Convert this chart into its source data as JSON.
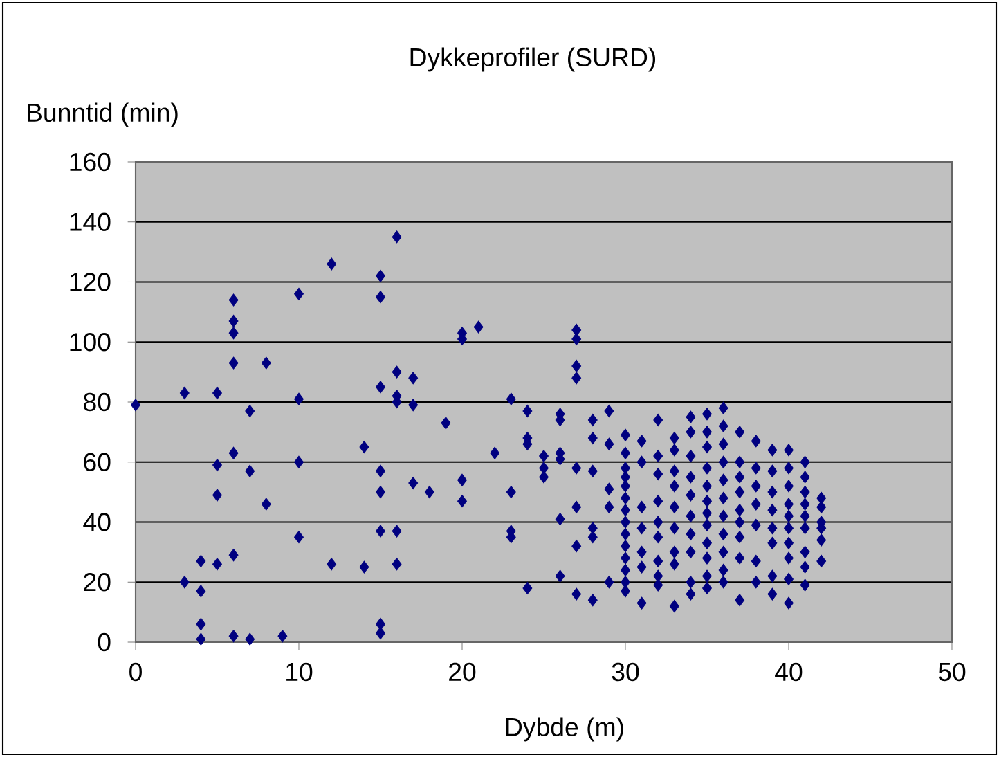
{
  "chart_data": {
    "type": "scatter",
    "title": "Dykkeprofiler (SURD)",
    "xlabel": "Dybde (m)",
    "ylabel": "Bunntid (min)",
    "xlim": [
      0,
      50
    ],
    "ylim": [
      0,
      160
    ],
    "xticks": [
      0,
      10,
      20,
      30,
      40,
      50
    ],
    "yticks": [
      0,
      20,
      40,
      60,
      80,
      100,
      120,
      140,
      160
    ],
    "grid": "y",
    "marker": "diamond",
    "color": "#000080",
    "x": [
      0,
      3,
      3,
      4,
      4,
      4,
      4,
      5,
      5,
      5,
      5,
      6,
      6,
      6,
      6,
      6,
      6,
      6,
      7,
      7,
      7,
      8,
      8,
      9,
      10,
      10,
      10,
      10,
      12,
      12,
      14,
      14,
      15,
      15,
      15,
      15,
      15,
      15,
      15,
      15,
      16,
      16,
      16,
      16,
      16,
      16,
      17,
      17,
      17,
      18,
      19,
      20,
      20,
      20,
      20,
      21,
      22,
      23,
      23,
      23,
      23,
      24,
      24,
      24,
      24,
      25,
      25,
      25,
      26,
      26,
      26,
      26,
      26,
      26,
      27,
      27,
      27,
      27,
      27,
      27,
      27,
      27,
      28,
      28,
      28,
      28,
      28,
      28,
      29,
      29,
      29,
      29,
      29,
      30,
      30,
      30,
      30,
      30,
      30,
      30,
      30,
      30,
      30,
      30,
      30,
      30,
      30,
      31,
      31,
      31,
      31,
      31,
      31,
      31,
      32,
      32,
      32,
      32,
      32,
      32,
      32,
      32,
      32,
      33,
      33,
      33,
      33,
      33,
      33,
      33,
      33,
      33,
      34,
      34,
      34,
      34,
      34,
      34,
      34,
      34,
      34,
      34,
      35,
      35,
      35,
      35,
      35,
      35,
      35,
      35,
      35,
      35,
      35,
      35,
      36,
      36,
      36,
      36,
      36,
      36,
      36,
      36,
      36,
      36,
      36,
      37,
      37,
      37,
      37,
      37,
      37,
      37,
      37,
      37,
      38,
      38,
      38,
      38,
      38,
      38,
      38,
      39,
      39,
      39,
      39,
      39,
      39,
      39,
      39,
      40,
      40,
      40,
      40,
      40,
      40,
      40,
      40,
      40,
      40,
      41,
      41,
      41,
      41,
      41,
      41,
      41,
      41,
      41,
      42,
      42,
      42,
      42,
      42,
      42
    ],
    "values": [
      79,
      83,
      20,
      27,
      17,
      6,
      1,
      83,
      59,
      49,
      26,
      114,
      107,
      103,
      93,
      63,
      29,
      2,
      77,
      57,
      1,
      93,
      46,
      2,
      116,
      81,
      60,
      35,
      126,
      26,
      65,
      25,
      122,
      115,
      85,
      57,
      50,
      37,
      6,
      3,
      135,
      90,
      82,
      80,
      37,
      26,
      88,
      79,
      53,
      50,
      73,
      103,
      101,
      54,
      47,
      105,
      63,
      81,
      50,
      37,
      35,
      77,
      68,
      66,
      18,
      62,
      58,
      55,
      76,
      74,
      63,
      61,
      41,
      22,
      104,
      101,
      92,
      88,
      58,
      45,
      32,
      16,
      74,
      68,
      57,
      38,
      35,
      14,
      77,
      66,
      51,
      45,
      20,
      69,
      63,
      58,
      55,
      52,
      48,
      44,
      40,
      36,
      32,
      28,
      24,
      20,
      17,
      67,
      60,
      45,
      38,
      30,
      25,
      13,
      74,
      62,
      56,
      47,
      40,
      35,
      27,
      22,
      19,
      68,
      64,
      57,
      52,
      45,
      38,
      30,
      26,
      12,
      75,
      70,
      62,
      55,
      49,
      42,
      36,
      30,
      20,
      16,
      76,
      70,
      65,
      58,
      52,
      47,
      43,
      39,
      33,
      28,
      22,
      18,
      78,
      72,
      66,
      60,
      54,
      48,
      42,
      36,
      30,
      24,
      20,
      70,
      60,
      55,
      50,
      44,
      40,
      35,
      28,
      14,
      67,
      58,
      52,
      46,
      39,
      27,
      20,
      64,
      57,
      50,
      44,
      38,
      33,
      22,
      16,
      64,
      58,
      52,
      46,
      42,
      38,
      33,
      28,
      21,
      13,
      60,
      55,
      50,
      46,
      42,
      38,
      30,
      25,
      19,
      48,
      45,
      40,
      38,
      34,
      27
    ]
  }
}
